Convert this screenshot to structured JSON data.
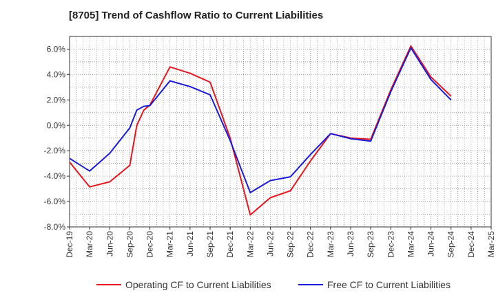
{
  "chart_data": {
    "type": "line",
    "title": "[8705]  Trend of Cashflow Ratio to Current Liabilities",
    "xlabel": "",
    "ylabel": "",
    "x": [
      "Dec-19",
      "Mar-20",
      "Jun-20",
      "Sep-20",
      "Dec-20",
      "Mar-21",
      "Jun-21",
      "Sep-21",
      "Dec-21",
      "Mar-22",
      "Jun-22",
      "Sep-22",
      "Dec-22",
      "Mar-23",
      "Jun-23",
      "Sep-23",
      "Dec-23",
      "Mar-24",
      "Jun-24",
      "Sep-24",
      "Dec-24",
      "Mar-25"
    ],
    "ylim": [
      -8,
      7
    ],
    "yticks": [
      -8,
      -6,
      -4,
      -2,
      0,
      2,
      4,
      6
    ],
    "y_tick_labels": [
      "-8.0%",
      "-6.0%",
      "-4.0%",
      "-2.0%",
      "0.0%",
      "2.0%",
      "4.0%",
      "6.0%"
    ],
    "grid": true,
    "legend_position": "bottom",
    "series": [
      {
        "name": "Operating CF to Current Liabilities",
        "color": "#e8141c",
        "points": [
          [
            0,
            -2.9
          ],
          [
            1,
            -4.85
          ],
          [
            2,
            -4.45
          ],
          [
            3,
            -3.15
          ],
          [
            3.35,
            0.0
          ],
          [
            3.7,
            1.2
          ],
          [
            4,
            1.6
          ],
          [
            5,
            4.6
          ],
          [
            6,
            4.1
          ],
          [
            7,
            3.4
          ],
          [
            8,
            -1.0
          ],
          [
            9,
            -7.05
          ],
          [
            10,
            -5.7
          ],
          [
            11,
            -5.15
          ],
          [
            12,
            -2.8
          ],
          [
            13,
            -0.65
          ],
          [
            14,
            -1.0
          ],
          [
            15,
            -1.1
          ],
          [
            16,
            2.8
          ],
          [
            17,
            6.25
          ],
          [
            18,
            3.8
          ],
          [
            19,
            2.3
          ]
        ]
      },
      {
        "name": "Free CF to Current Liabilities",
        "color": "#1a1adb",
        "points": [
          [
            0,
            -2.6
          ],
          [
            1,
            -3.6
          ],
          [
            2,
            -2.2
          ],
          [
            3,
            -0.2
          ],
          [
            3.35,
            1.2
          ],
          [
            3.7,
            1.5
          ],
          [
            4,
            1.55
          ],
          [
            5,
            3.5
          ],
          [
            6,
            3.05
          ],
          [
            7,
            2.4
          ],
          [
            8,
            -1.2
          ],
          [
            9,
            -5.3
          ],
          [
            10,
            -4.35
          ],
          [
            11,
            -4.05
          ],
          [
            12,
            -2.3
          ],
          [
            13,
            -0.65
          ],
          [
            14,
            -1.05
          ],
          [
            15,
            -1.25
          ],
          [
            16,
            2.65
          ],
          [
            17,
            6.1
          ],
          [
            18,
            3.6
          ],
          [
            19,
            2.0
          ]
        ]
      }
    ]
  }
}
